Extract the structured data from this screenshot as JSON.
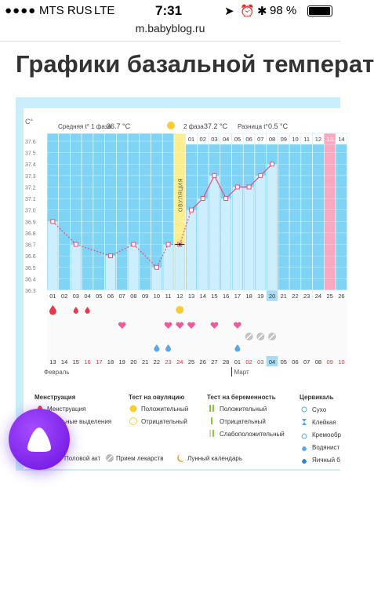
{
  "status": {
    "carrier": "MTS RUS",
    "network": "LTE",
    "time": "7:31",
    "battery": "98 %"
  },
  "browser": {
    "url": "m.babyblog.ru"
  },
  "page": {
    "title": "Графики базальной температ"
  },
  "chart_data": {
    "type": "line",
    "ylabel": "С°",
    "ylim": [
      36.3,
      37.6
    ],
    "yticks": [
      "37.6",
      "37.5",
      "37.4",
      "37.3",
      "37.2",
      "37.1",
      "37.0",
      "36.9",
      "36.8",
      "36.7",
      "36.6",
      "36.5",
      "36.4",
      "36.3"
    ],
    "x": [
      "01",
      "02",
      "03",
      "04",
      "05",
      "06",
      "07",
      "08",
      "09",
      "10",
      "11",
      "12",
      "13",
      "14",
      "15",
      "16",
      "17",
      "18",
      "19",
      "20",
      "21",
      "22",
      "23",
      "24",
      "25",
      "26"
    ],
    "top_days": [
      "01",
      "02",
      "03",
      "04",
      "05",
      "06",
      "07",
      "08",
      "09",
      "10",
      "11",
      "12",
      "13",
      "14"
    ],
    "dates": [
      "13",
      "14",
      "15",
      "16",
      "17",
      "18",
      "19",
      "20",
      "21",
      "22",
      "23",
      "24",
      "25",
      "26",
      "27",
      "28",
      "01",
      "02",
      "03",
      "04",
      "05",
      "06",
      "07",
      "08",
      "09",
      "10"
    ],
    "date_red_idx": [
      3,
      4,
      10,
      11,
      17,
      18,
      24,
      25
    ],
    "month_feb": "Февраль",
    "month_mar": "Март",
    "series": [
      {
        "name": "",
        "values": [
          36.9,
          null,
          36.7,
          null,
          null,
          36.6,
          null,
          36.7,
          null,
          36.5,
          36.7,
          36.7,
          37.0,
          37.1,
          37.3,
          37.1,
          37.2,
          37.2,
          37.3,
          37.4,
          null,
          null,
          null,
          null,
          null,
          null
        ]
      }
    ],
    "phase1": {
      "label": "Средняя t° 1 фаза",
      "value": "36.7 °С"
    },
    "phase2": {
      "label": "2 фаза",
      "value": "37.2 °С"
    },
    "diff": {
      "label": "Разница t°",
      "value": "0.5 °С"
    },
    "ovulation_label": "ОВУЛЯЦИЯ",
    "ovulation_day_index": 11,
    "today_index": 19,
    "colors": {
      "blue": "#7fd3f4",
      "light": "#cdeefc",
      "line": "#e0507a",
      "ovulation": "#fbee8e",
      "pink": "#f9a8c0"
    }
  },
  "legend": {
    "menstruation": {
      "title": "Менструация",
      "items": [
        "Менструация",
        "Обильные выделения"
      ]
    },
    "ovulation_test": {
      "title": "Тест на овуляцию",
      "items": [
        "Положительный",
        "Отрицательный"
      ]
    },
    "pregnancy_test": {
      "title": "Тест на беременность",
      "items": [
        "Положительный",
        "Отрицательный",
        "Слабоположительный"
      ]
    },
    "cervical": {
      "title": "Цервикаль",
      "items": [
        "Сухо",
        "Клейкая",
        "Кремообр",
        "Водянист",
        "Яичный б"
      ]
    },
    "bottom": [
      "Половой акт",
      "Прием лекарств",
      "Лунный календарь"
    ]
  }
}
